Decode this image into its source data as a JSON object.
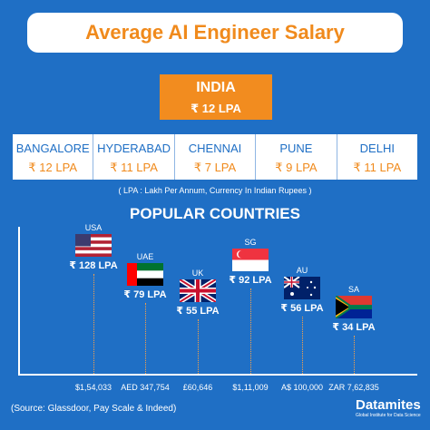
{
  "header": {
    "title": "Average AI Engineer Salary"
  },
  "national": {
    "country": "INDIA",
    "salary": "₹ 12 LPA"
  },
  "cities": [
    {
      "name": "BANGALORE",
      "salary": "₹ 12 LPA"
    },
    {
      "name": "HYDERABAD",
      "salary": "₹ 11 LPA"
    },
    {
      "name": "CHENNAI",
      "salary": "₹ 7 LPA"
    },
    {
      "name": "PUNE",
      "salary": "₹ 9 LPA"
    },
    {
      "name": "DELHI",
      "salary": "₹ 11 LPA"
    }
  ],
  "note": "( LPA : Lakh Per Annum, Currency In Indian Rupees )",
  "section_title": "POPULAR COUNTRIES",
  "countries": [
    {
      "code": "USA",
      "salary_inr": "₹ 128 LPA",
      "salary_local": "$1,54,033"
    },
    {
      "code": "UAE",
      "salary_inr": "₹ 79 LPA",
      "salary_local": "AED 347,754"
    },
    {
      "code": "UK",
      "salary_inr": "₹ 55 LPA",
      "salary_local": "£60,646"
    },
    {
      "code": "SG",
      "salary_inr": "₹ 92 LPA",
      "salary_local": "$1,11,009"
    },
    {
      "code": "AU",
      "salary_inr": "₹ 56 LPA",
      "salary_local": "A$ 100,000"
    },
    {
      "code": "SA",
      "salary_inr": "₹ 34 LPA",
      "salary_local": "ZAR 7,62,835"
    }
  ],
  "source": "(Source: Glassdoor, Pay Scale & Indeed)",
  "logo": {
    "name": "Datamites",
    "tagline": "Global Institute for Data Science"
  }
}
